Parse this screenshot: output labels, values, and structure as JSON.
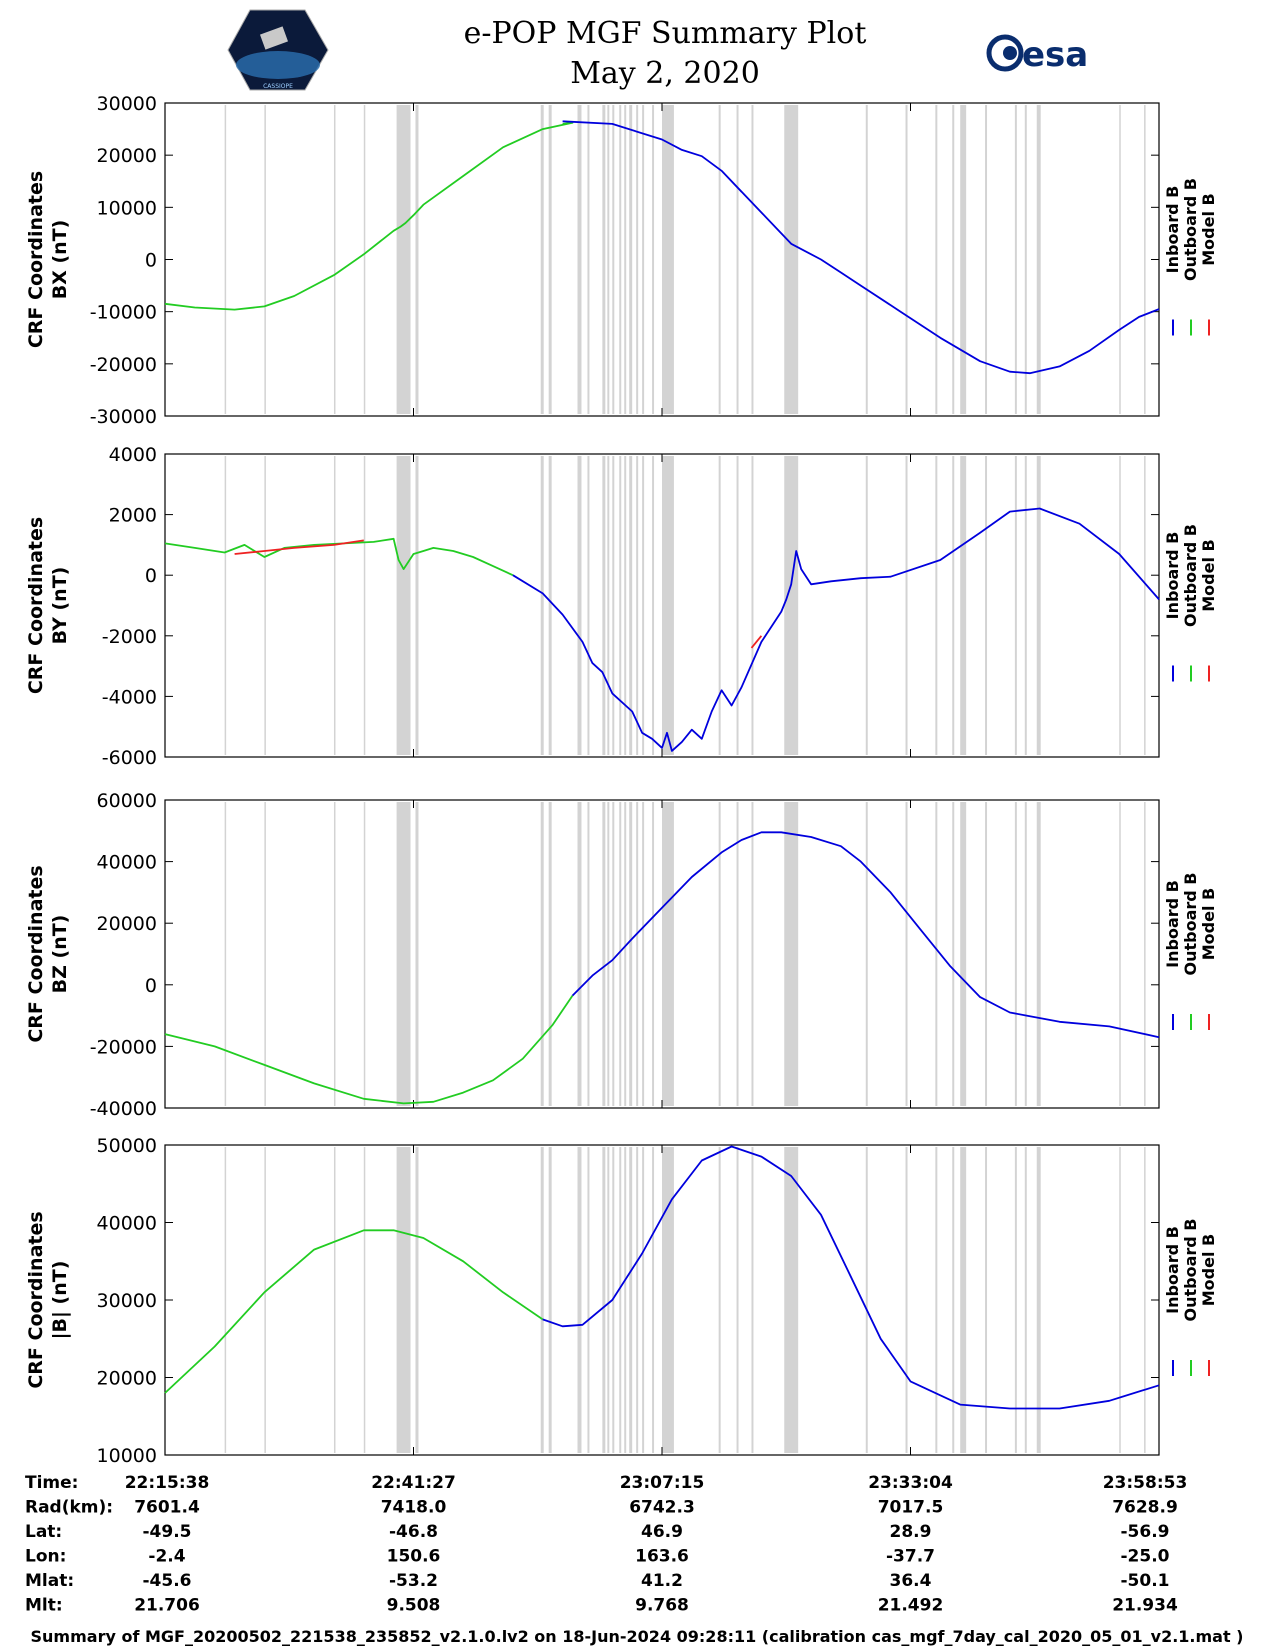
{
  "title": {
    "line1": "e-POP MGF Summary Plot",
    "line2": "May 2, 2020"
  },
  "logos": {
    "left_label": "CASSIOPE",
    "right_text": "esa"
  },
  "legend": {
    "labels": [
      "Inboard B",
      "Outboard B",
      "Model B"
    ],
    "colors": [
      "#0000dd",
      "#22cc22",
      "#ee2222"
    ]
  },
  "colors": {
    "inboard": "#0000dd",
    "outboard": "#22cc22",
    "model": "#ee2222",
    "gap_band": "#d3d3d3"
  },
  "time_axis": {
    "ticks": [
      "22:15:38",
      "22:41:27",
      "23:07:15",
      "23:33:04",
      "23:58:53"
    ],
    "tick_positions": [
      0,
      0.25,
      0.5,
      0.75,
      1.0
    ]
  },
  "gap_bands": [
    [
      0.06,
      0.061
    ],
    [
      0.1,
      0.101
    ],
    [
      0.17,
      0.171
    ],
    [
      0.2,
      0.201
    ],
    [
      0.233,
      0.247
    ],
    [
      0.252,
      0.255
    ],
    [
      0.378,
      0.381
    ],
    [
      0.386,
      0.389
    ],
    [
      0.415,
      0.419
    ],
    [
      0.425,
      0.427
    ],
    [
      0.44,
      0.443
    ],
    [
      0.445,
      0.447
    ],
    [
      0.45,
      0.452
    ],
    [
      0.457,
      0.459
    ],
    [
      0.462,
      0.464
    ],
    [
      0.467,
      0.47
    ],
    [
      0.474,
      0.476
    ],
    [
      0.48,
      0.482
    ],
    [
      0.49,
      0.492
    ],
    [
      0.5,
      0.512
    ],
    [
      0.557,
      0.559
    ],
    [
      0.575,
      0.577
    ],
    [
      0.59,
      0.592
    ],
    [
      0.623,
      0.637
    ],
    [
      0.705,
      0.707
    ],
    [
      0.745,
      0.747
    ],
    [
      0.775,
      0.777
    ],
    [
      0.792,
      0.794
    ],
    [
      0.8,
      0.806
    ],
    [
      0.825,
      0.827
    ],
    [
      0.855,
      0.857
    ],
    [
      0.865,
      0.867
    ],
    [
      0.877,
      0.881
    ],
    [
      0.96,
      0.961
    ],
    [
      0.985,
      0.986
    ]
  ],
  "chart_data": [
    {
      "type": "line",
      "ylabel_line1": "CRF Coordinates",
      "ylabel_line2": "BX (nT)",
      "ylim": [
        -30000,
        30000
      ],
      "yticks": [
        -30000,
        -20000,
        -10000,
        0,
        10000,
        20000,
        30000
      ],
      "ytick_labels": [
        "-30000",
        "-20000",
        "-10000",
        "0",
        "10000",
        "20000",
        "30000"
      ],
      "series": [
        {
          "name": "Outboard B",
          "points": [
            [
              0,
              -8500
            ],
            [
              0.03,
              -9200
            ],
            [
              0.07,
              -9600
            ],
            [
              0.1,
              -9000
            ],
            [
              0.13,
              -7000
            ],
            [
              0.17,
              -3000
            ],
            [
              0.2,
              1000
            ],
            [
              0.23,
              5500
            ],
            [
              0.237,
              6300
            ],
            [
              0.242,
              7000
            ],
            [
              0.25,
              8500
            ],
            [
              0.26,
              10500
            ],
            [
              0.3,
              16000
            ],
            [
              0.34,
              21500
            ],
            [
              0.38,
              25000
            ],
            [
              0.41,
              26200
            ],
            [
              0.4,
              26000
            ]
          ]
        },
        {
          "name": "Inboard B",
          "points": [
            [
              0.4,
              26500
            ],
            [
              0.45,
              26000
            ],
            [
              0.5,
              23000
            ],
            [
              0.52,
              21000
            ],
            [
              0.54,
              19800
            ],
            [
              0.56,
              17000
            ],
            [
              0.58,
              13000
            ],
            [
              0.56,
              17000
            ],
            [
              0.6,
              9000
            ],
            [
              0.62,
              5000
            ],
            [
              0.63,
              3000
            ],
            [
              0.66,
              0
            ],
            [
              0.68,
              -2500
            ],
            [
              0.7,
              -5000
            ],
            [
              0.74,
              -10000
            ],
            [
              0.78,
              -15000
            ],
            [
              0.82,
              -19500
            ],
            [
              0.85,
              -21500
            ],
            [
              0.87,
              -21800
            ],
            [
              0.9,
              -20500
            ],
            [
              0.93,
              -17500
            ],
            [
              0.96,
              -13500
            ],
            [
              0.98,
              -11000
            ],
            [
              1.0,
              -9500
            ]
          ]
        }
      ]
    },
    {
      "type": "line",
      "ylabel_line1": "CRF Coordinates",
      "ylabel_line2": "BY (nT)",
      "ylim": [
        -6000,
        4000
      ],
      "yticks": [
        -6000,
        -4000,
        -2000,
        0,
        2000,
        4000
      ],
      "ytick_labels": [
        "-6000",
        "-4000",
        "-2000",
        "0",
        "2000",
        "4000"
      ],
      "series": [
        {
          "name": "Outboard B",
          "points": [
            [
              0,
              1050
            ],
            [
              0.03,
              900
            ],
            [
              0.06,
              750
            ],
            [
              0.08,
              1000
            ],
            [
              0.1,
              600
            ],
            [
              0.12,
              900
            ],
            [
              0.15,
              1000
            ],
            [
              0.18,
              1050
            ],
            [
              0.21,
              1100
            ],
            [
              0.23,
              1200
            ],
            [
              0.235,
              500
            ],
            [
              0.24,
              200
            ],
            [
              0.25,
              700
            ],
            [
              0.26,
              800
            ],
            [
              0.27,
              900
            ],
            [
              0.29,
              800
            ],
            [
              0.31,
              600
            ],
            [
              0.33,
              300
            ],
            [
              0.35,
              0
            ]
          ]
        },
        {
          "name": "Model B",
          "points": [
            [
              0.07,
              700
            ],
            [
              0.1,
              800
            ],
            [
              0.13,
              900
            ],
            [
              0.17,
              1000
            ],
            [
              0.2,
              1150
            ]
          ]
        },
        {
          "name": "Inboard B",
          "points": [
            [
              0.35,
              0
            ],
            [
              0.38,
              -600
            ],
            [
              0.4,
              -1300
            ],
            [
              0.42,
              -2200
            ],
            [
              0.43,
              -2900
            ],
            [
              0.44,
              -3200
            ],
            [
              0.45,
              -3900
            ],
            [
              0.47,
              -4500
            ],
            [
              0.48,
              -5200
            ],
            [
              0.49,
              -5400
            ],
            [
              0.5,
              -5700
            ],
            [
              0.505,
              -5200
            ],
            [
              0.51,
              -5800
            ],
            [
              0.52,
              -5500
            ],
            [
              0.53,
              -5100
            ],
            [
              0.54,
              -5400
            ],
            [
              0.55,
              -4500
            ],
            [
              0.56,
              -3800
            ],
            [
              0.57,
              -4300
            ],
            [
              0.58,
              -3700
            ],
            [
              0.6,
              -2200
            ],
            [
              0.62,
              -1200
            ],
            [
              0.625,
              -800
            ],
            [
              0.63,
              -300
            ],
            [
              0.635,
              800
            ],
            [
              0.64,
              200
            ],
            [
              0.65,
              -300
            ],
            [
              0.67,
              -200
            ],
            [
              0.7,
              -100
            ],
            [
              0.73,
              -50
            ],
            [
              0.78,
              500
            ],
            [
              0.82,
              1400
            ],
            [
              0.85,
              2100
            ],
            [
              0.88,
              2200
            ],
            [
              0.92,
              1700
            ],
            [
              0.96,
              700
            ],
            [
              1.0,
              -800
            ]
          ]
        },
        {
          "name": "Model B",
          "points": [
            [
              0.59,
              -2400
            ],
            [
              0.6,
              -2000
            ]
          ]
        }
      ]
    },
    {
      "type": "line",
      "ylabel_line1": "CRF Coordinates",
      "ylabel_line2": "BZ (nT)",
      "ylim": [
        -40000,
        60000
      ],
      "yticks": [
        -40000,
        -20000,
        0,
        20000,
        40000,
        60000
      ],
      "ytick_labels": [
        "-40000",
        "-20000",
        "0",
        "20000",
        "40000",
        "60000"
      ],
      "series": [
        {
          "name": "Outboard B",
          "points": [
            [
              0,
              -16000
            ],
            [
              0.05,
              -20000
            ],
            [
              0.1,
              -26000
            ],
            [
              0.15,
              -32000
            ],
            [
              0.2,
              -37000
            ],
            [
              0.24,
              -38500
            ],
            [
              0.27,
              -38000
            ],
            [
              0.3,
              -35000
            ],
            [
              0.33,
              -31000
            ],
            [
              0.36,
              -24000
            ],
            [
              0.39,
              -13000
            ],
            [
              0.41,
              -3500
            ]
          ]
        },
        {
          "name": "Inboard B",
          "points": [
            [
              0.41,
              -3500
            ],
            [
              0.43,
              3000
            ],
            [
              0.45,
              8000
            ],
            [
              0.47,
              15000
            ],
            [
              0.5,
              25000
            ],
            [
              0.53,
              35000
            ],
            [
              0.56,
              43000
            ],
            [
              0.58,
              47000
            ],
            [
              0.6,
              49500
            ],
            [
              0.62,
              49500
            ],
            [
              0.65,
              48000
            ],
            [
              0.68,
              45000
            ],
            [
              0.7,
              40000
            ],
            [
              0.73,
              30000
            ],
            [
              0.76,
              18000
            ],
            [
              0.79,
              6000
            ],
            [
              0.82,
              -4000
            ],
            [
              0.85,
              -9000
            ],
            [
              0.9,
              -12000
            ],
            [
              0.95,
              -13500
            ],
            [
              1.0,
              -17000
            ]
          ]
        }
      ]
    },
    {
      "type": "line",
      "ylabel_line1": "CRF Coordinates",
      "ylabel_line2": "|B| (nT)",
      "ylim": [
        10000,
        50000
      ],
      "yticks": [
        10000,
        20000,
        30000,
        40000,
        50000
      ],
      "ytick_labels": [
        "10000",
        "20000",
        "30000",
        "40000",
        "50000"
      ],
      "series": [
        {
          "name": "Outboard B",
          "points": [
            [
              0,
              18000
            ],
            [
              0.05,
              24000
            ],
            [
              0.1,
              31000
            ],
            [
              0.15,
              36500
            ],
            [
              0.2,
              39000
            ],
            [
              0.23,
              39000
            ],
            [
              0.26,
              38000
            ],
            [
              0.3,
              35000
            ],
            [
              0.34,
              31000
            ],
            [
              0.38,
              27500
            ]
          ]
        },
        {
          "name": "Inboard B",
          "points": [
            [
              0.38,
              27500
            ],
            [
              0.4,
              26600
            ],
            [
              0.42,
              26800
            ],
            [
              0.45,
              30000
            ],
            [
              0.48,
              36000
            ],
            [
              0.51,
              43000
            ],
            [
              0.54,
              48000
            ],
            [
              0.57,
              49800
            ],
            [
              0.6,
              48500
            ],
            [
              0.63,
              46000
            ],
            [
              0.66,
              41000
            ],
            [
              0.69,
              33000
            ],
            [
              0.72,
              25000
            ],
            [
              0.75,
              19500
            ],
            [
              0.8,
              16500
            ],
            [
              0.85,
              16000
            ],
            [
              0.9,
              16000
            ],
            [
              0.95,
              17000
            ],
            [
              1.0,
              19000
            ]
          ]
        }
      ]
    }
  ],
  "info_table": {
    "row_labels": [
      "Time:",
      "Rad(km):",
      "Lat:",
      "Lon:",
      "Mlat:",
      "Mlt:"
    ],
    "columns": [
      [
        "22:15:38",
        "7601.4",
        "-49.5",
        "-2.4",
        "-45.6",
        "21.706"
      ],
      [
        "22:41:27",
        "7418.0",
        "-46.8",
        "150.6",
        "-53.2",
        "9.508"
      ],
      [
        "23:07:15",
        "6742.3",
        "46.9",
        "163.6",
        "41.2",
        "9.768"
      ],
      [
        "23:33:04",
        "7017.5",
        "28.9",
        "-37.7",
        "36.4",
        "21.492"
      ],
      [
        "23:58:53",
        "7628.9",
        "-56.9",
        "-25.0",
        "-50.1",
        "21.934"
      ]
    ]
  },
  "footer": "Summary of MGF_20200502_221538_235852_v2.1.0.lv2 on 18-Jun-2024 09:28:11 (calibration cas_mgf_7day_cal_2020_05_01_v2.1.mat )"
}
